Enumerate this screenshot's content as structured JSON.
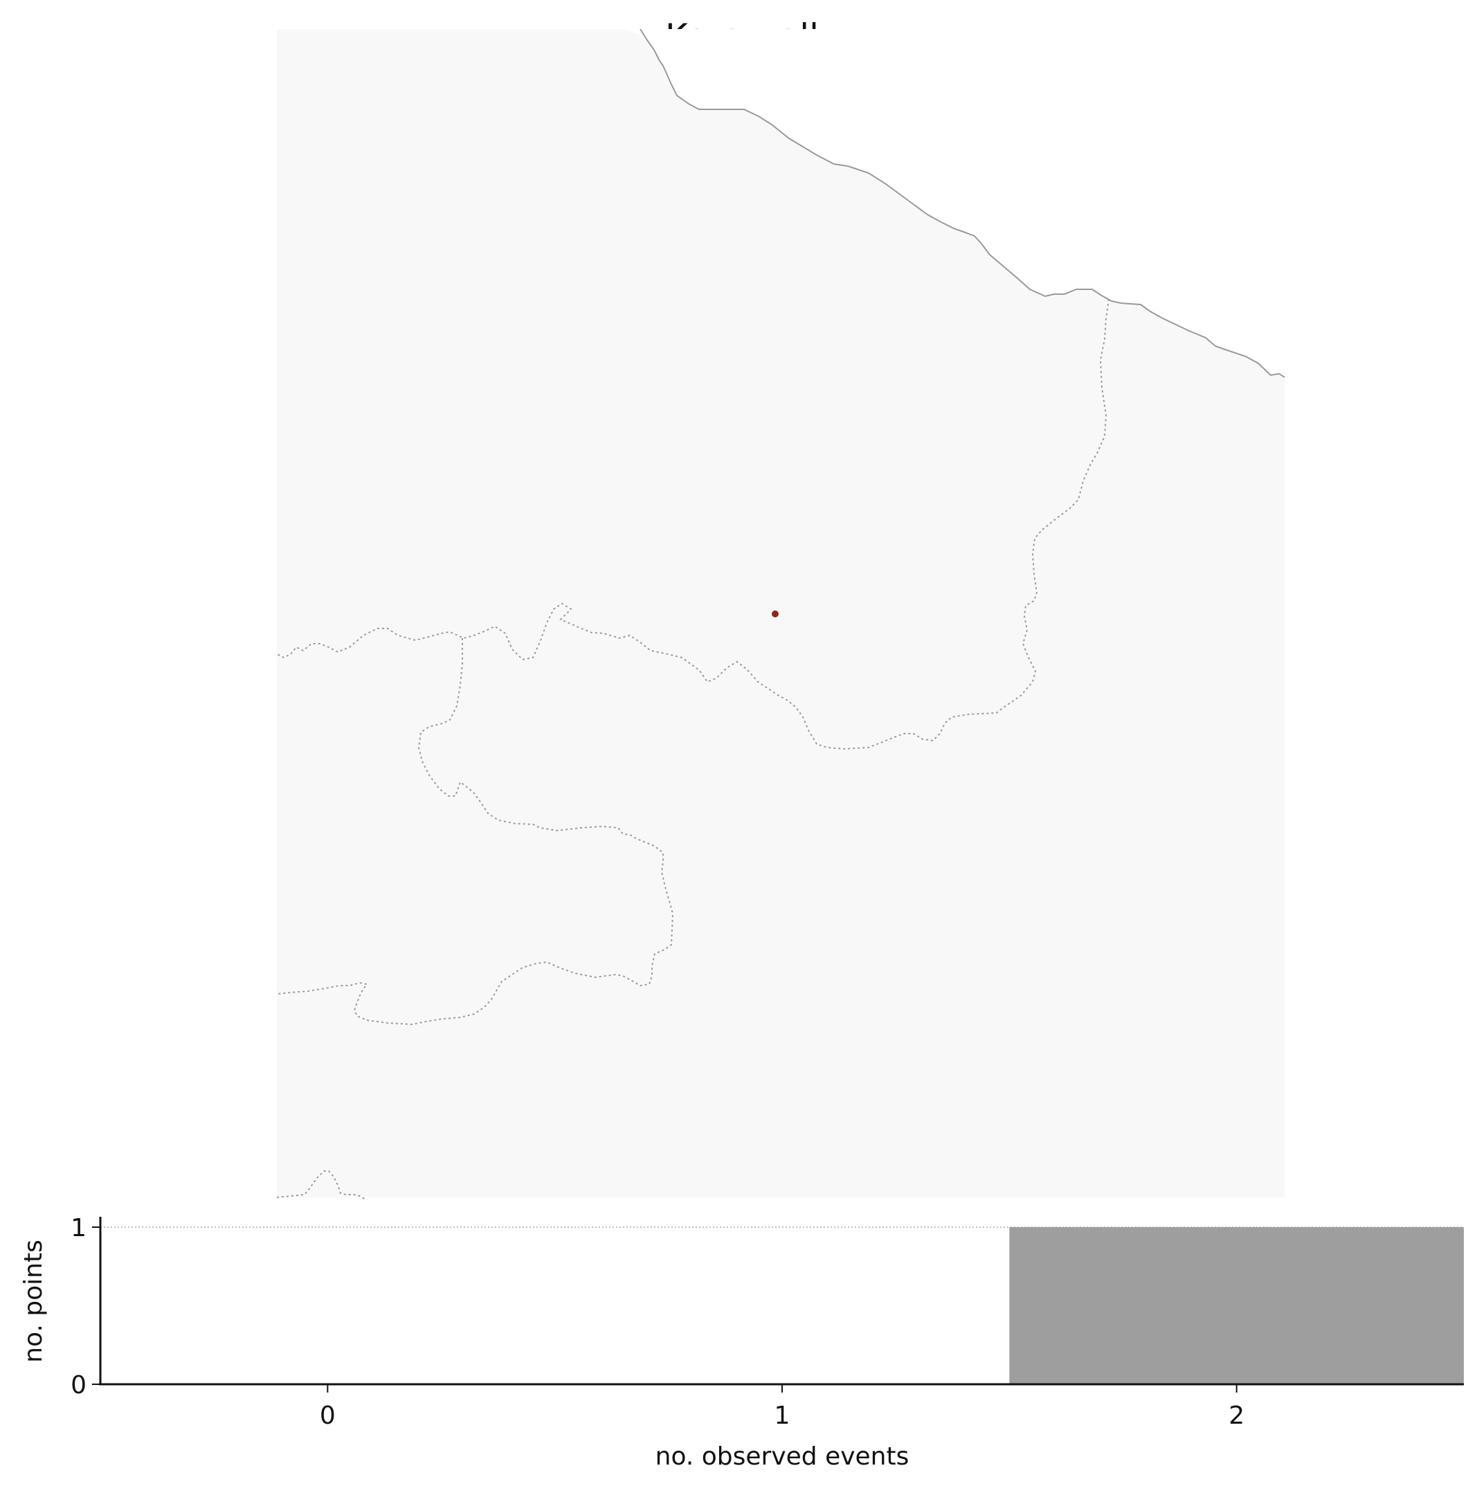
{
  "title": "Kara - all",
  "map": {
    "land_color": "#f8f8f8",
    "coastline_color": "#9a9a9a",
    "border_color": "#9a9a9a",
    "point_color": "#8b2a1a"
  },
  "chart_data": {
    "type": "bar",
    "xlabel": "no. observed events",
    "ylabel": "no. points",
    "categories": [
      0,
      1,
      2
    ],
    "values": [
      0,
      0,
      1
    ],
    "xlim": [
      -0.5,
      2.5
    ],
    "ylim": [
      0,
      1
    ],
    "xticks": [
      "0",
      "1",
      "2"
    ],
    "yticks": [
      "0",
      "1"
    ],
    "bar_color": "#9e9e9e",
    "grid": false
  }
}
